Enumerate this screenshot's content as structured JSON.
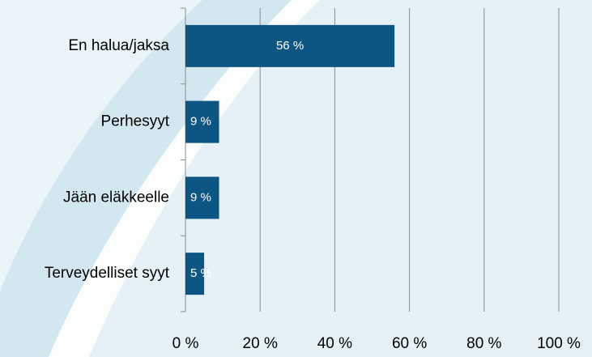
{
  "chart_data": {
    "type": "bar",
    "orientation": "horizontal",
    "categories": [
      "En halua/jaksa",
      "Perhesyyt",
      "Jään eläkkeelle",
      "Terveydelliset syyt"
    ],
    "values": [
      56,
      9,
      9,
      5
    ],
    "value_labels": [
      "56 %",
      "9 %",
      "9 %",
      "5 %"
    ],
    "color": "#0d5583",
    "xlim": [
      0,
      100
    ],
    "xticks": [
      {
        "value": 0,
        "label": "0 %"
      },
      {
        "value": 20,
        "label": "20 %"
      },
      {
        "value": 40,
        "label": "40 %"
      },
      {
        "value": 60,
        "label": "60 %"
      },
      {
        "value": 80,
        "label": "80 %"
      },
      {
        "value": 100,
        "label": "100 %"
      }
    ],
    "grid": true
  }
}
